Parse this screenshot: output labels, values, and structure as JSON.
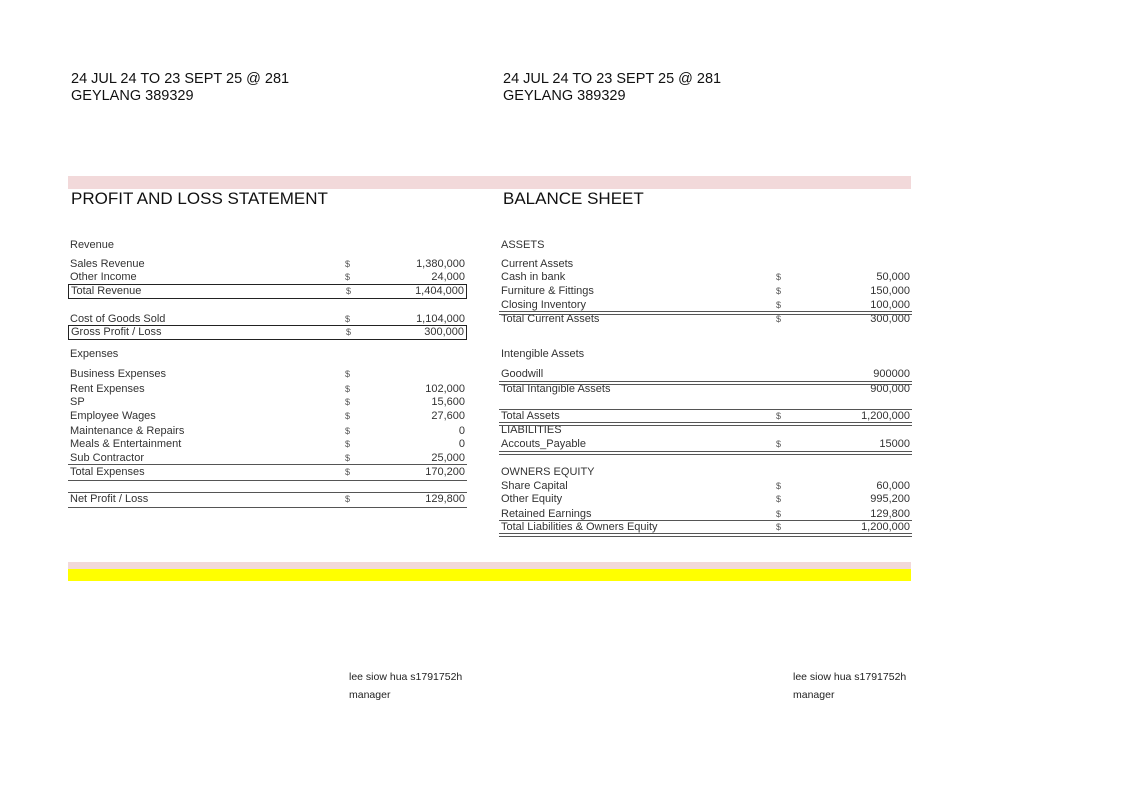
{
  "header_left": {
    "line1": "24 JUL 24 TO 23 SEPT 25 @ 281",
    "line2": "GEYLANG 389329"
  },
  "header_right": {
    "line1": "24 JUL 24 TO 23 SEPT 25 @ 281",
    "line2": "GEYLANG 389329"
  },
  "pnl": {
    "title": "PROFIT AND LOSS STATEMENT",
    "rows": [
      {
        "label": "Revenue",
        "dollar": "",
        "value": ""
      },
      {
        "label": "Sales Revenue",
        "dollar": "$",
        "value": "1,380,000"
      },
      {
        "label": "Other Income",
        "dollar": "$",
        "value": "24,000"
      },
      {
        "label": "Total Revenue",
        "dollar": "$",
        "value": "1,404,000"
      },
      {
        "label": "Cost of Goods Sold",
        "dollar": "$",
        "value": "1,104,000"
      },
      {
        "label": "Gross Profit / Loss",
        "dollar": "$",
        "value": "300,000"
      },
      {
        "label": "Expenses",
        "dollar": "",
        "value": ""
      },
      {
        "label": "Business Expenses",
        "dollar": "$",
        "value": ""
      },
      {
        "label": "Rent Expenses",
        "dollar": "$",
        "value": "102,000"
      },
      {
        "label": "SP",
        "dollar": "$",
        "value": "15,600"
      },
      {
        "label": "Employee Wages",
        "dollar": "$",
        "value": "27,600"
      },
      {
        "label": "Maintenance  & Repairs",
        "dollar": "$",
        "value": "0"
      },
      {
        "label": "Meals & Entertainment",
        "dollar": "$",
        "value": "0"
      },
      {
        "label": "Sub Contractor",
        "dollar": "$",
        "value": "25,000"
      },
      {
        "label": "Total Expenses",
        "dollar": "$",
        "value": "170,200"
      },
      {
        "label": "Net  Profit / Loss",
        "dollar": "$",
        "value": "129,800"
      }
    ]
  },
  "balance": {
    "title": "BALANCE SHEET",
    "rows": [
      {
        "label": "ASSETS",
        "dollar": "",
        "value": ""
      },
      {
        "label": "Current Assets",
        "dollar": "",
        "value": ""
      },
      {
        "label": "Cash in bank",
        "dollar": "$",
        "value": "50,000"
      },
      {
        "label": "Furniture & Fittings",
        "dollar": "$",
        "value": "150,000"
      },
      {
        "label": "Closing Inventory",
        "dollar": "$",
        "value": "100,000"
      },
      {
        "label": "Total Current Assets",
        "dollar": "$",
        "value": "300,000"
      },
      {
        "label": "Intengible Assets",
        "dollar": "",
        "value": ""
      },
      {
        "label": "Goodwill",
        "dollar": "",
        "value": "900000"
      },
      {
        "label": "Total Intangible Assets",
        "dollar": "",
        "value": "900,000"
      },
      {
        "label": "Total Assets",
        "dollar": "$",
        "value": "1,200,000"
      },
      {
        "label": "LIABILITIES",
        "dollar": "",
        "value": ""
      },
      {
        "label": "Accouts_Payable",
        "dollar": "$",
        "value": "15000"
      },
      {
        "label": "OWNERS EQUITY",
        "dollar": "",
        "value": ""
      },
      {
        "label": "Share Capital",
        "dollar": "$",
        "value": "60,000"
      },
      {
        "label": "Other Equity",
        "dollar": "$",
        "value": "995,200"
      },
      {
        "label": "Retained Earnings",
        "dollar": "$",
        "value": "129,800"
      },
      {
        "label": "Total Liabilities & Owners Equity",
        "dollar": "$",
        "value": "1,200,000"
      }
    ]
  },
  "signature_left": {
    "name": "lee siow hua s1791752h",
    "role": "manager"
  },
  "signature_right": {
    "name": "lee siow hua s1791752h",
    "role": "manager"
  },
  "colors": {
    "pink_band": "#f2d9da",
    "yellow_band": "#ffff00"
  }
}
